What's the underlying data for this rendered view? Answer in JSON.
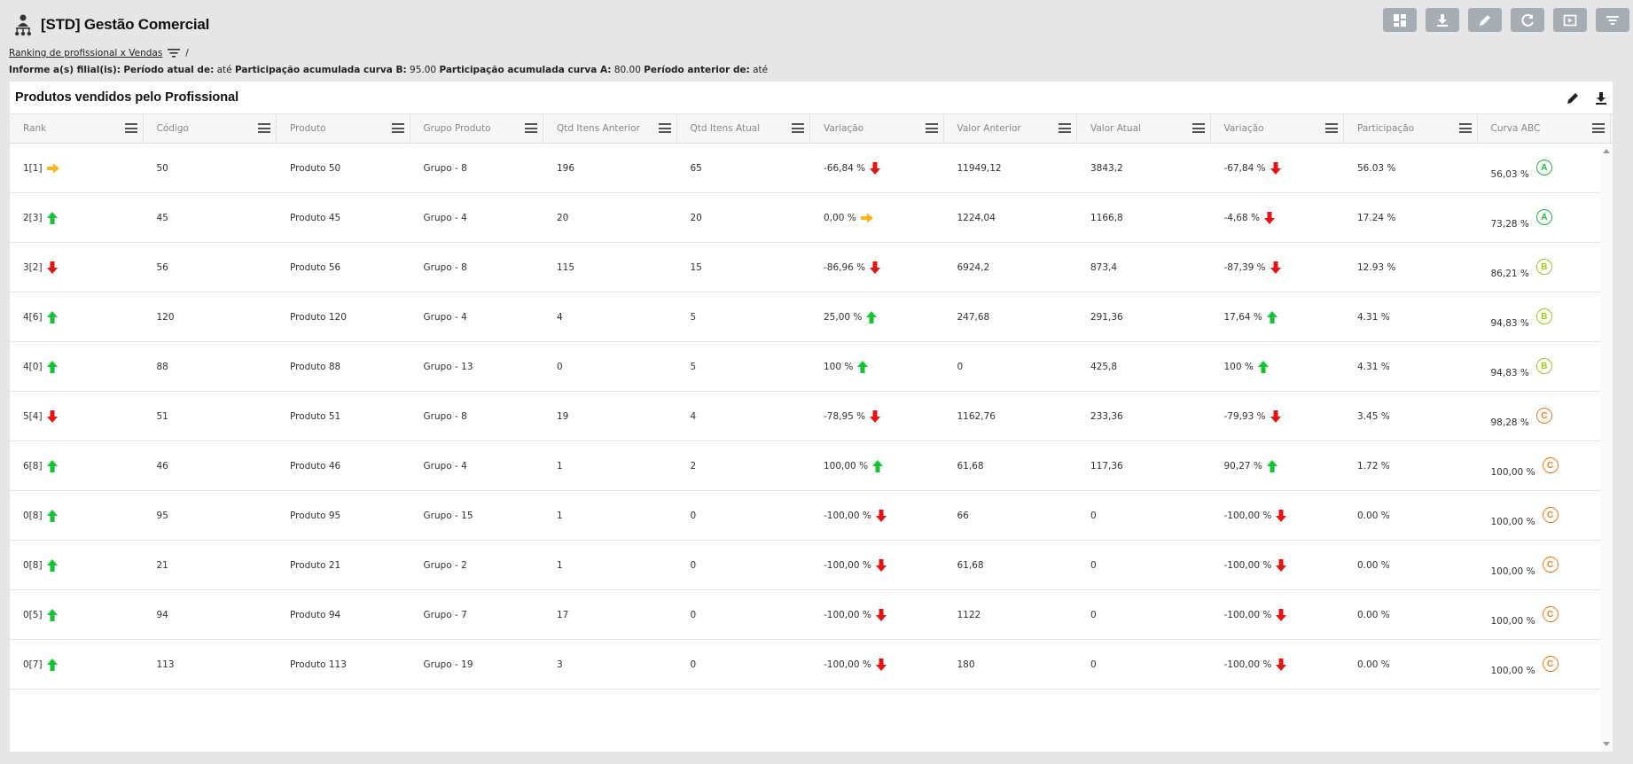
{
  "app": {
    "title": "[STD] Gestão Comercial",
    "logo_icon": "user-org-icon"
  },
  "toolbar": {
    "buttons": [
      {
        "name": "dashboard-layout-button",
        "icon": "dashboard-icon"
      },
      {
        "name": "download-button",
        "icon": "download-icon"
      },
      {
        "name": "edit-button",
        "icon": "pencil-icon"
      },
      {
        "name": "refresh-button",
        "icon": "refresh-icon"
      },
      {
        "name": "presentation-button",
        "icon": "play-icon"
      },
      {
        "name": "filter-button",
        "icon": "filter-icon"
      }
    ]
  },
  "breadcrumb": {
    "link": "Ranking de profissional x Vendas",
    "separator": "/"
  },
  "filters": {
    "filial_label": "Informe a(s) filial(is):",
    "periodo_atual_label": "Período atual de:",
    "periodo_atual_value": "até",
    "curva_b_label": "Participação acumulada curva B:",
    "curva_b_value": "95.00",
    "curva_a_label": "Participação acumulada curva A:",
    "curva_a_value": "80.00",
    "periodo_anterior_label": "Período anterior de:",
    "periodo_anterior_value": "até"
  },
  "panel": {
    "title": "Produtos vendidos pelo Profissional"
  },
  "colors": {
    "up": "#15c232",
    "down": "#e51414",
    "neutral": "#f6b817",
    "curve_a": "#18b339",
    "curve_b": "#9acd14",
    "curve_c": "#f07a17"
  },
  "table": {
    "columns": [
      "Rank",
      "Código",
      "Produto",
      "Grupo Produto",
      "Qtd Itens Anterior",
      "Qtd Itens Atual",
      "Variação",
      "Valor Anterior",
      "Valor Atual",
      "Variação",
      "Participação",
      "Curva ABC"
    ],
    "rows": [
      {
        "rank": "1[1]",
        "rank_trend": "neutral",
        "codigo": "50",
        "produto": "Produto 50",
        "grupo": "Grupo - 8",
        "qtd_ant": "196",
        "qtd_atual": "65",
        "var_qtd": "-66,84 %",
        "var_qtd_trend": "down",
        "valor_ant": "11949,12",
        "valor_atual": "3843,2",
        "var_valor": "-67,84 %",
        "var_valor_trend": "down",
        "participacao": "56.03 %",
        "curva_pct": "56,03 %",
        "curva": "A"
      },
      {
        "rank": "2[3]",
        "rank_trend": "up",
        "codigo": "45",
        "produto": "Produto 45",
        "grupo": "Grupo - 4",
        "qtd_ant": "20",
        "qtd_atual": "20",
        "var_qtd": "0,00 %",
        "var_qtd_trend": "neutral",
        "valor_ant": "1224,04",
        "valor_atual": "1166,8",
        "var_valor": "-4,68 %",
        "var_valor_trend": "down",
        "participacao": "17.24 %",
        "curva_pct": "73,28 %",
        "curva": "A"
      },
      {
        "rank": "3[2]",
        "rank_trend": "down",
        "codigo": "56",
        "produto": "Produto 56",
        "grupo": "Grupo - 8",
        "qtd_ant": "115",
        "qtd_atual": "15",
        "var_qtd": "-86,96 %",
        "var_qtd_trend": "down",
        "valor_ant": "6924,2",
        "valor_atual": "873,4",
        "var_valor": "-87,39 %",
        "var_valor_trend": "down",
        "participacao": "12.93 %",
        "curva_pct": "86,21 %",
        "curva": "B"
      },
      {
        "rank": "4[6]",
        "rank_trend": "up",
        "codigo": "120",
        "produto": "Produto 120",
        "grupo": "Grupo - 4",
        "qtd_ant": "4",
        "qtd_atual": "5",
        "var_qtd": "25,00 %",
        "var_qtd_trend": "up",
        "valor_ant": "247,68",
        "valor_atual": "291,36",
        "var_valor": "17,64 %",
        "var_valor_trend": "up",
        "participacao": "4.31 %",
        "curva_pct": "94,83 %",
        "curva": "B"
      },
      {
        "rank": "4[0]",
        "rank_trend": "up",
        "codigo": "88",
        "produto": "Produto 88",
        "grupo": "Grupo - 13",
        "qtd_ant": "0",
        "qtd_atual": "5",
        "var_qtd": "100 %",
        "var_qtd_trend": "up",
        "valor_ant": "0",
        "valor_atual": "425,8",
        "var_valor": "100 %",
        "var_valor_trend": "up",
        "participacao": "4.31 %",
        "curva_pct": "94,83 %",
        "curva": "B"
      },
      {
        "rank": "5[4]",
        "rank_trend": "down",
        "codigo": "51",
        "produto": "Produto 51",
        "grupo": "Grupo - 8",
        "qtd_ant": "19",
        "qtd_atual": "4",
        "var_qtd": "-78,95 %",
        "var_qtd_trend": "down",
        "valor_ant": "1162,76",
        "valor_atual": "233,36",
        "var_valor": "-79,93 %",
        "var_valor_trend": "down",
        "participacao": "3.45 %",
        "curva_pct": "98,28 %",
        "curva": "C"
      },
      {
        "rank": "6[8]",
        "rank_trend": "up",
        "codigo": "46",
        "produto": "Produto 46",
        "grupo": "Grupo - 4",
        "qtd_ant": "1",
        "qtd_atual": "2",
        "var_qtd": "100,00 %",
        "var_qtd_trend": "up",
        "valor_ant": "61,68",
        "valor_atual": "117,36",
        "var_valor": "90,27 %",
        "var_valor_trend": "up",
        "participacao": "1.72 %",
        "curva_pct": "100,00 %",
        "curva": "C"
      },
      {
        "rank": "0[8]",
        "rank_trend": "up",
        "codigo": "95",
        "produto": "Produto 95",
        "grupo": "Grupo - 15",
        "qtd_ant": "1",
        "qtd_atual": "0",
        "var_qtd": "-100,00 %",
        "var_qtd_trend": "down",
        "valor_ant": "66",
        "valor_atual": "0",
        "var_valor": "-100,00 %",
        "var_valor_trend": "down",
        "participacao": "0.00 %",
        "curva_pct": "100,00 %",
        "curva": "C"
      },
      {
        "rank": "0[8]",
        "rank_trend": "up",
        "codigo": "21",
        "produto": "Produto 21",
        "grupo": "Grupo - 2",
        "qtd_ant": "1",
        "qtd_atual": "0",
        "var_qtd": "-100,00 %",
        "var_qtd_trend": "down",
        "valor_ant": "61,68",
        "valor_atual": "0",
        "var_valor": "-100,00 %",
        "var_valor_trend": "down",
        "participacao": "0.00 %",
        "curva_pct": "100,00 %",
        "curva": "C"
      },
      {
        "rank": "0[5]",
        "rank_trend": "up",
        "codigo": "94",
        "produto": "Produto 94",
        "grupo": "Grupo - 7",
        "qtd_ant": "17",
        "qtd_atual": "0",
        "var_qtd": "-100,00 %",
        "var_qtd_trend": "down",
        "valor_ant": "1122",
        "valor_atual": "0",
        "var_valor": "-100,00 %",
        "var_valor_trend": "down",
        "participacao": "0.00 %",
        "curva_pct": "100,00 %",
        "curva": "C"
      },
      {
        "rank": "0[7]",
        "rank_trend": "up",
        "codigo": "113",
        "produto": "Produto 113",
        "grupo": "Grupo - 19",
        "qtd_ant": "3",
        "qtd_atual": "0",
        "var_qtd": "-100,00 %",
        "var_qtd_trend": "down",
        "valor_ant": "180",
        "valor_atual": "0",
        "var_valor": "-100,00 %",
        "var_valor_trend": "down",
        "participacao": "0.00 %",
        "curva_pct": "100,00 %",
        "curva": "C"
      }
    ]
  }
}
